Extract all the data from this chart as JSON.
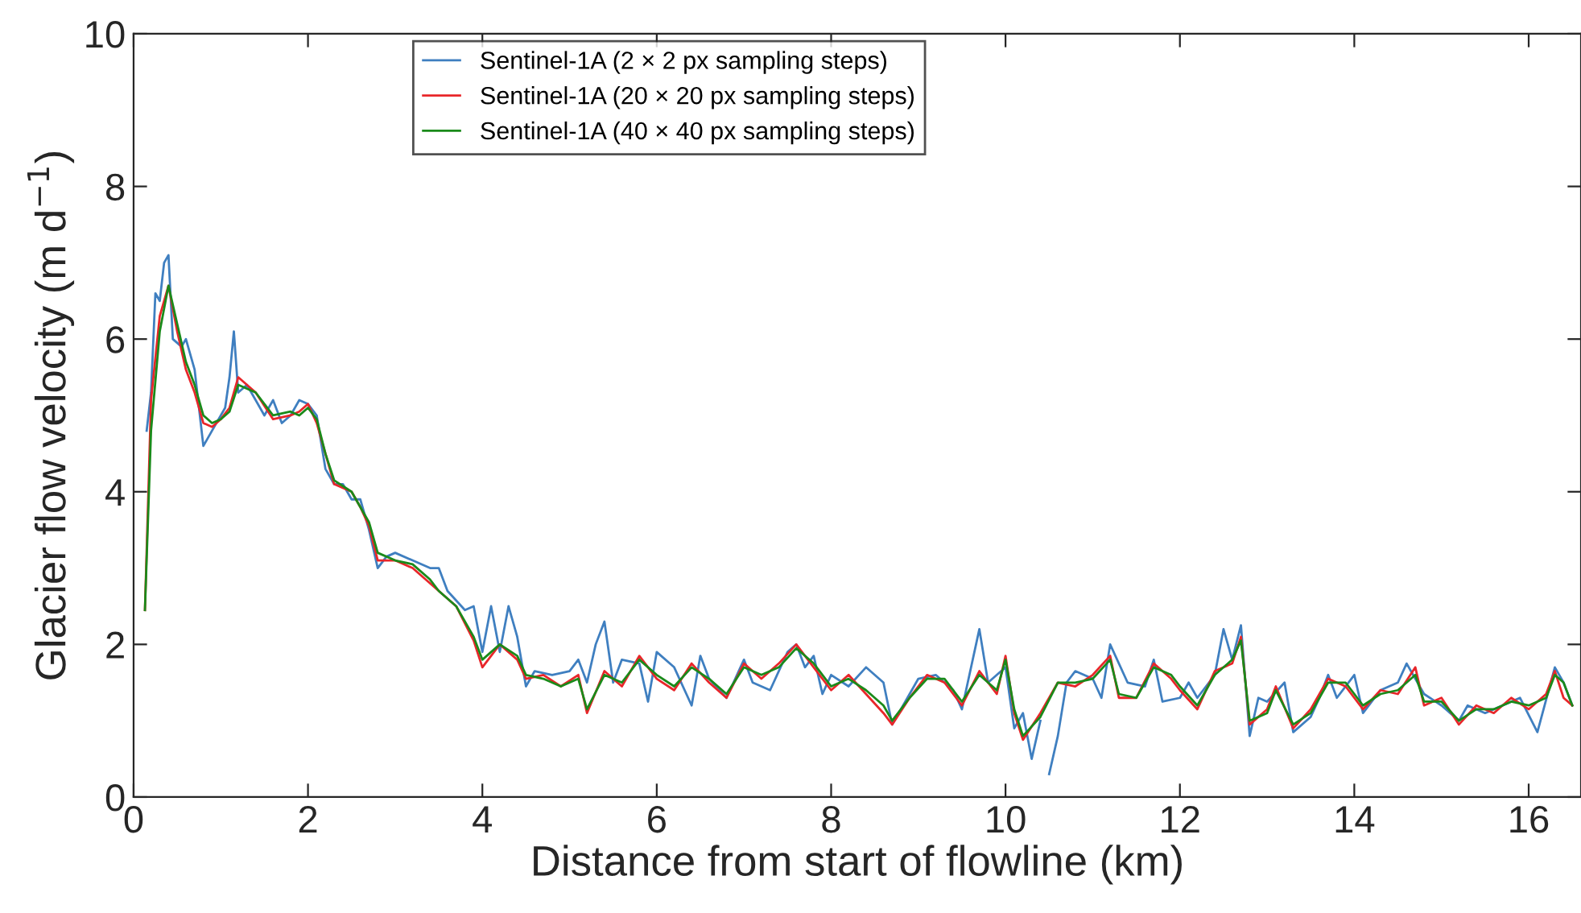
{
  "chart_data": {
    "type": "line",
    "xlabel": "Distance from start of flowline (km)",
    "ylabel": "Glacier flow velocity (m d$^{−1}$)",
    "xlim": [
      0,
      16.6
    ],
    "ylim": [
      0,
      10
    ],
    "xticks": [
      0,
      2,
      4,
      6,
      8,
      10,
      12,
      14,
      16
    ],
    "yticks": [
      0,
      2,
      4,
      6,
      8,
      10
    ],
    "grid": false,
    "legend": "top",
    "line_style": "solid",
    "marker": "none",
    "series": [
      {
        "name": "Sentinel-1A (2 × 2 px sampling steps)",
        "color": "#3f7fc0",
        "x": [
          0.15,
          0.2,
          0.25,
          0.3,
          0.35,
          0.4,
          0.45,
          0.55,
          0.6,
          0.7,
          0.8,
          0.9,
          1.0,
          1.05,
          1.1,
          1.15,
          1.2,
          1.3,
          1.5,
          1.6,
          1.7,
          1.8,
          1.9,
          2.0,
          2.1,
          2.2,
          2.3,
          2.4,
          2.5,
          2.6,
          2.7,
          2.8,
          2.9,
          3.0,
          3.2,
          3.4,
          3.5,
          3.6,
          3.8,
          3.9,
          4.0,
          4.1,
          4.2,
          4.3,
          4.4,
          4.5,
          4.6,
          4.8,
          5.0,
          5.1,
          5.2,
          5.3,
          5.4,
          5.5,
          5.6,
          5.8,
          5.9,
          6.0,
          6.2,
          6.4,
          6.5,
          6.6,
          6.8,
          7.0,
          7.1,
          7.3,
          7.5,
          7.6,
          7.7,
          7.8,
          7.9,
          8.0,
          8.2,
          8.4,
          8.6,
          8.7,
          8.8,
          9.0,
          9.2,
          9.4,
          9.5,
          9.7,
          9.8,
          9.9,
          10.0,
          10.1,
          10.2,
          10.3,
          10.4,
          10.45,
          10.5,
          10.6,
          10.7,
          10.8,
          11.0,
          11.1,
          11.2,
          11.4,
          11.6,
          11.7,
          11.8,
          12.0,
          12.1,
          12.2,
          12.4,
          12.5,
          12.6,
          12.7,
          12.8,
          12.9,
          13.0,
          13.2,
          13.3,
          13.5,
          13.6,
          13.7,
          13.8,
          14.0,
          14.1,
          14.3,
          14.5,
          14.6,
          14.8,
          15.0,
          15.2,
          15.3,
          15.5,
          15.7,
          15.9,
          16.1,
          16.3,
          16.4,
          16.5
        ],
        "values": [
          4.8,
          5.3,
          6.6,
          6.5,
          7.0,
          7.1,
          6.0,
          5.9,
          6.0,
          5.6,
          4.6,
          4.8,
          5.0,
          5.1,
          5.5,
          6.1,
          5.3,
          5.4,
          5.0,
          5.2,
          4.9,
          5.0,
          5.2,
          5.15,
          5.0,
          4.3,
          4.1,
          4.1,
          3.9,
          3.9,
          3.5,
          3.0,
          3.15,
          3.2,
          3.1,
          3.0,
          3.0,
          2.7,
          2.45,
          2.5,
          1.9,
          2.5,
          1.9,
          2.5,
          2.1,
          1.45,
          1.65,
          1.6,
          1.65,
          1.8,
          1.5,
          2.0,
          2.3,
          1.5,
          1.8,
          1.75,
          1.25,
          1.9,
          1.7,
          1.2,
          1.85,
          1.55,
          1.3,
          1.8,
          1.5,
          1.4,
          1.9,
          2.0,
          1.7,
          1.85,
          1.35,
          1.6,
          1.45,
          1.7,
          1.5,
          0.95,
          1.15,
          1.55,
          1.6,
          1.4,
          1.15,
          2.2,
          1.5,
          1.6,
          1.7,
          0.9,
          1.1,
          0.5,
          1.0,
          null,
          0.3,
          0.8,
          1.5,
          1.65,
          1.55,
          1.3,
          2.0,
          1.5,
          1.45,
          1.8,
          1.25,
          1.3,
          1.5,
          1.3,
          1.6,
          2.2,
          1.8,
          2.25,
          0.8,
          1.3,
          1.25,
          1.5,
          0.85,
          1.05,
          1.3,
          1.6,
          1.3,
          1.6,
          1.1,
          1.4,
          1.5,
          1.75,
          1.35,
          1.2,
          1.0,
          1.2,
          1.1,
          1.2,
          1.3,
          0.85,
          1.7,
          1.5,
          1.2
        ]
      },
      {
        "name": "Sentinel-1A (20 × 20 px sampling steps)",
        "color": "#e8262a",
        "x": [
          0.13,
          0.2,
          0.3,
          0.4,
          0.5,
          0.6,
          0.7,
          0.8,
          0.9,
          1.0,
          1.1,
          1.2,
          1.4,
          1.6,
          1.8,
          1.9,
          2.0,
          2.1,
          2.2,
          2.3,
          2.5,
          2.6,
          2.7,
          2.8,
          3.0,
          3.2,
          3.4,
          3.5,
          3.7,
          3.9,
          4.0,
          4.2,
          4.4,
          4.5,
          4.7,
          4.9,
          5.1,
          5.2,
          5.4,
          5.6,
          5.8,
          6.0,
          6.2,
          6.4,
          6.6,
          6.8,
          7.0,
          7.2,
          7.4,
          7.6,
          7.8,
          8.0,
          8.2,
          8.4,
          8.6,
          8.7,
          8.9,
          9.1,
          9.3,
          9.5,
          9.7,
          9.9,
          10.0,
          10.1,
          10.2,
          10.4,
          10.6,
          10.8,
          11.0,
          11.2,
          11.3,
          11.5,
          11.7,
          11.9,
          12.0,
          12.2,
          12.4,
          12.6,
          12.7,
          12.8,
          13.0,
          13.1,
          13.3,
          13.5,
          13.7,
          13.9,
          14.1,
          14.3,
          14.5,
          14.7,
          14.8,
          15.0,
          15.2,
          15.4,
          15.6,
          15.8,
          16.0,
          16.2,
          16.3,
          16.4,
          16.5
        ],
        "values": [
          2.45,
          5.2,
          6.3,
          6.7,
          6.1,
          5.6,
          5.3,
          4.9,
          4.85,
          4.95,
          5.1,
          5.5,
          5.3,
          4.95,
          5.0,
          5.05,
          5.15,
          4.9,
          4.5,
          4.1,
          4.0,
          3.8,
          3.55,
          3.1,
          3.1,
          3.0,
          2.8,
          2.7,
          2.5,
          2.05,
          1.7,
          2.0,
          1.8,
          1.55,
          1.6,
          1.45,
          1.6,
          1.1,
          1.65,
          1.45,
          1.85,
          1.55,
          1.4,
          1.75,
          1.5,
          1.3,
          1.75,
          1.55,
          1.75,
          2.0,
          1.7,
          1.4,
          1.6,
          1.35,
          1.1,
          0.95,
          1.3,
          1.6,
          1.5,
          1.2,
          1.65,
          1.35,
          1.85,
          1.1,
          0.75,
          1.1,
          1.5,
          1.45,
          1.6,
          1.85,
          1.3,
          1.3,
          1.75,
          1.55,
          1.4,
          1.15,
          1.65,
          1.75,
          2.1,
          0.95,
          1.15,
          1.45,
          0.9,
          1.15,
          1.55,
          1.45,
          1.15,
          1.4,
          1.35,
          1.7,
          1.2,
          1.3,
          0.95,
          1.2,
          1.1,
          1.3,
          1.15,
          1.35,
          1.65,
          1.3,
          1.2
        ]
      },
      {
        "name": "Sentinel-1A (40 × 40 px sampling steps)",
        "color": "#1a8a1a",
        "x": [
          0.13,
          0.2,
          0.3,
          0.4,
          0.5,
          0.6,
          0.7,
          0.8,
          0.9,
          1.0,
          1.1,
          1.2,
          1.4,
          1.6,
          1.8,
          1.9,
          2.0,
          2.1,
          2.2,
          2.3,
          2.5,
          2.6,
          2.7,
          2.8,
          3.0,
          3.2,
          3.4,
          3.5,
          3.7,
          3.9,
          4.0,
          4.2,
          4.4,
          4.5,
          4.7,
          4.9,
          5.1,
          5.2,
          5.4,
          5.6,
          5.8,
          6.0,
          6.2,
          6.4,
          6.6,
          6.8,
          7.0,
          7.2,
          7.4,
          7.6,
          7.8,
          8.0,
          8.2,
          8.4,
          8.6,
          8.7,
          8.9,
          9.1,
          9.3,
          9.5,
          9.7,
          9.9,
          10.0,
          10.1,
          10.2,
          10.4,
          10.6,
          10.8,
          11.0,
          11.2,
          11.3,
          11.5,
          11.7,
          11.9,
          12.0,
          12.2,
          12.4,
          12.6,
          12.7,
          12.8,
          13.0,
          13.1,
          13.3,
          13.5,
          13.7,
          13.9,
          14.1,
          14.3,
          14.5,
          14.7,
          14.8,
          15.0,
          15.2,
          15.4,
          15.6,
          15.8,
          16.0,
          16.2,
          16.3,
          16.4,
          16.5
        ],
        "values": [
          2.45,
          4.8,
          6.1,
          6.7,
          6.2,
          5.7,
          5.4,
          5.0,
          4.9,
          4.95,
          5.05,
          5.4,
          5.3,
          5.0,
          5.05,
          5.0,
          5.1,
          4.95,
          4.5,
          4.15,
          4.0,
          3.8,
          3.6,
          3.2,
          3.1,
          3.05,
          2.85,
          2.7,
          2.5,
          2.1,
          1.8,
          2.0,
          1.85,
          1.6,
          1.55,
          1.45,
          1.55,
          1.15,
          1.6,
          1.5,
          1.8,
          1.6,
          1.45,
          1.7,
          1.55,
          1.35,
          1.7,
          1.6,
          1.7,
          1.95,
          1.75,
          1.45,
          1.55,
          1.4,
          1.2,
          1.0,
          1.3,
          1.55,
          1.55,
          1.25,
          1.6,
          1.4,
          1.8,
          1.15,
          0.8,
          1.05,
          1.5,
          1.5,
          1.55,
          1.8,
          1.35,
          1.3,
          1.7,
          1.6,
          1.45,
          1.2,
          1.6,
          1.8,
          2.05,
          1.0,
          1.1,
          1.4,
          0.95,
          1.1,
          1.5,
          1.5,
          1.2,
          1.35,
          1.4,
          1.6,
          1.25,
          1.25,
          1.0,
          1.15,
          1.15,
          1.25,
          1.2,
          1.3,
          1.6,
          1.5,
          1.2
        ]
      }
    ]
  }
}
